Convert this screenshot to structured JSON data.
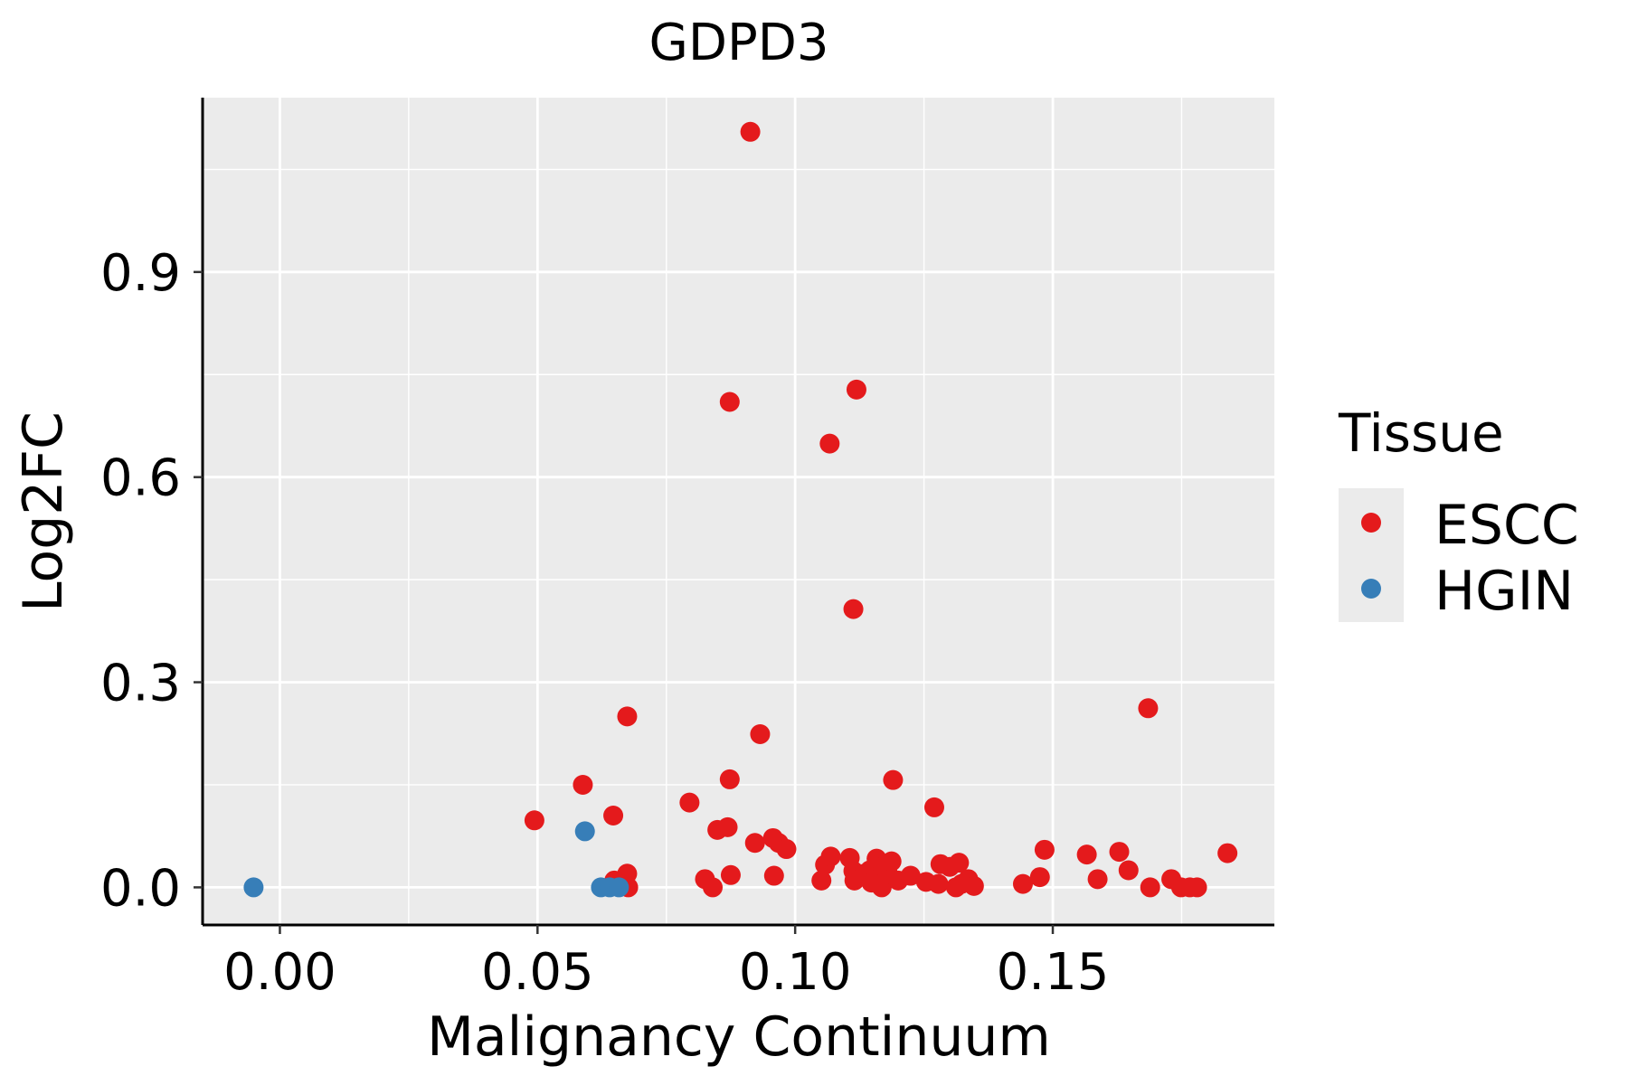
{
  "chart_data": {
    "type": "scatter",
    "title": "GDPD3",
    "xlabel": "Malignancy Continuum",
    "ylabel": "Log2FC",
    "xlim": [
      -0.015,
      0.193
    ],
    "ylim": [
      -0.055,
      1.155
    ],
    "x_ticks": [
      0.0,
      0.05,
      0.1,
      0.15
    ],
    "x_tick_labels": [
      "0.00",
      "0.05",
      "0.10",
      "0.15"
    ],
    "y_ticks": [
      0.0,
      0.3,
      0.6,
      0.9
    ],
    "y_tick_labels": [
      "0.0",
      "0.3",
      "0.6",
      "0.9"
    ],
    "grid": true,
    "legend": {
      "title": "Tissue",
      "position": "right",
      "entries": [
        {
          "label": "ESCC",
          "color": "#E41A1C"
        },
        {
          "label": "HGIN",
          "color": "#377EB8"
        }
      ]
    },
    "series": [
      {
        "name": "ESCC",
        "color": "#E41A1C",
        "points": [
          [
            0.0494,
            0.098
          ],
          [
            0.0588,
            0.15
          ],
          [
            0.0647,
            0.105
          ],
          [
            0.0649,
            0.01
          ],
          [
            0.0674,
            0.25
          ],
          [
            0.0674,
            0.02
          ],
          [
            0.0676,
            0.0
          ],
          [
            0.0795,
            0.124
          ],
          [
            0.0825,
            0.012
          ],
          [
            0.084,
            0.0
          ],
          [
            0.0849,
            0.084
          ],
          [
            0.0869,
            0.088
          ],
          [
            0.0873,
            0.158
          ],
          [
            0.0873,
            0.71
          ],
          [
            0.0875,
            0.018
          ],
          [
            0.0913,
            1.105
          ],
          [
            0.0922,
            0.065
          ],
          [
            0.0932,
            0.224
          ],
          [
            0.0957,
            0.072
          ],
          [
            0.0959,
            0.017
          ],
          [
            0.0968,
            0.065
          ],
          [
            0.0983,
            0.056
          ],
          [
            0.1051,
            0.01
          ],
          [
            0.1058,
            0.033
          ],
          [
            0.1067,
            0.649
          ],
          [
            0.1069,
            0.045
          ],
          [
            0.1106,
            0.043
          ],
          [
            0.1113,
            0.407
          ],
          [
            0.1119,
            0.728
          ],
          [
            0.1113,
            0.024
          ],
          [
            0.1115,
            0.01
          ],
          [
            0.1135,
            0.02
          ],
          [
            0.1145,
            0.025
          ],
          [
            0.1148,
            0.007
          ],
          [
            0.1158,
            0.042
          ],
          [
            0.116,
            0.012
          ],
          [
            0.1168,
            0.0
          ],
          [
            0.117,
            0.03
          ],
          [
            0.118,
            0.02
          ],
          [
            0.1187,
            0.038
          ],
          [
            0.119,
            0.157
          ],
          [
            0.12,
            0.01
          ],
          [
            0.1224,
            0.017
          ],
          [
            0.1254,
            0.008
          ],
          [
            0.127,
            0.117
          ],
          [
            0.1278,
            0.005
          ],
          [
            0.1282,
            0.034
          ],
          [
            0.13,
            0.03
          ],
          [
            0.1312,
            0.0
          ],
          [
            0.1318,
            0.036
          ],
          [
            0.1323,
            0.005
          ],
          [
            0.1336,
            0.012
          ],
          [
            0.1347,
            0.002
          ],
          [
            0.1442,
            0.005
          ],
          [
            0.1475,
            0.015
          ],
          [
            0.1484,
            0.055
          ],
          [
            0.1566,
            0.048
          ],
          [
            0.1587,
            0.012
          ],
          [
            0.1629,
            0.052
          ],
          [
            0.1647,
            0.025
          ],
          [
            0.1685,
            0.262
          ],
          [
            0.1689,
            0.0
          ],
          [
            0.173,
            0.012
          ],
          [
            0.1749,
            0.0
          ],
          [
            0.1766,
            0.0
          ],
          [
            0.178,
            0.0
          ],
          [
            0.1839,
            0.05
          ]
        ]
      },
      {
        "name": "HGIN",
        "color": "#377EB8",
        "points": [
          [
            -0.0051,
            0.0
          ],
          [
            0.0592,
            0.082
          ],
          [
            0.0623,
            0.0
          ],
          [
            0.064,
            0.0
          ],
          [
            0.0658,
            0.0
          ]
        ]
      }
    ]
  }
}
